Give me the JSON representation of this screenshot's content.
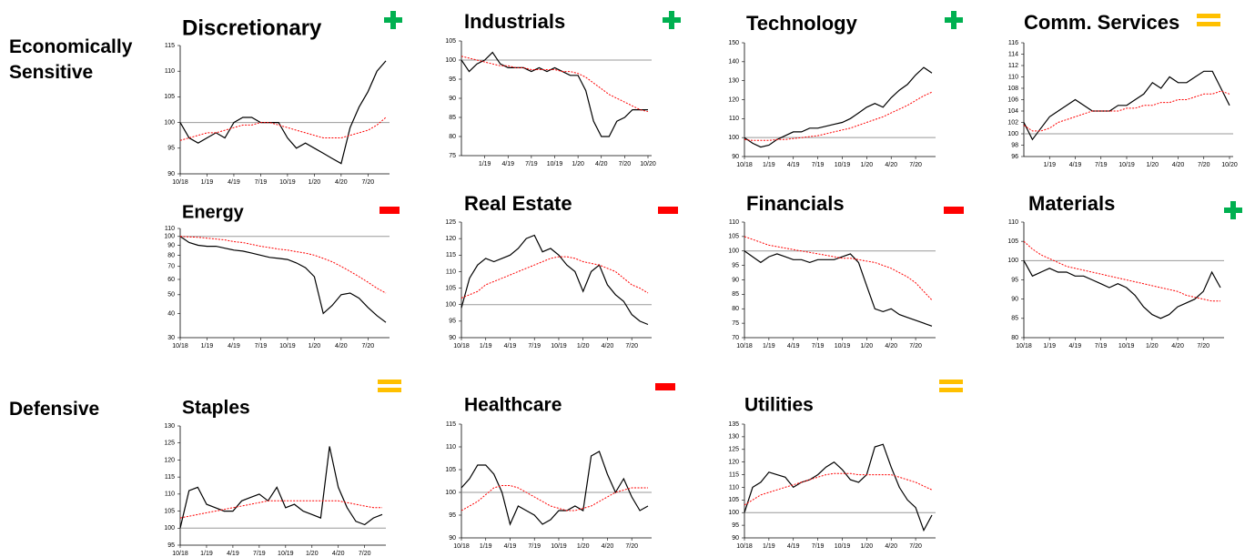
{
  "groups": [
    "Economically Sensitive",
    "Defensive"
  ],
  "chart_data": [
    {
      "type": "line",
      "title": "Discretionary",
      "signal": "+",
      "signal_color": "#00b050",
      "categories": [
        "10/18",
        null,
        null,
        "1/19",
        null,
        null,
        "4/19",
        null,
        null,
        "7/19",
        null,
        null,
        "10/19",
        null,
        null,
        "1/20",
        null,
        null,
        "4/20",
        null,
        null,
        "7/20",
        null,
        null
      ],
      "ylim": [
        90,
        115
      ],
      "yticks": [
        90,
        95,
        100,
        105,
        110,
        115
      ],
      "hline": 100,
      "series": [
        {
          "color": "#000000",
          "values": [
            100,
            97,
            96,
            97,
            98,
            97,
            100,
            101,
            101,
            100,
            100,
            100,
            97,
            95,
            96,
            95,
            94,
            93,
            92,
            99,
            103,
            106,
            110,
            112
          ]
        },
        {
          "color": "#ff0000",
          "dashed": true,
          "values": [
            96.5,
            97,
            97.5,
            98,
            98,
            98.5,
            99,
            99.5,
            99.5,
            100,
            100,
            99.5,
            99,
            98.5,
            98,
            97.5,
            97,
            97,
            97,
            97.5,
            98,
            98.5,
            99.5,
            101
          ]
        }
      ]
    },
    {
      "type": "line",
      "title": "Industrials",
      "signal": "+",
      "signal_color": "#00b050",
      "categories": [
        null,
        null,
        null,
        "1/19",
        null,
        null,
        "4/19",
        null,
        null,
        "7/19",
        null,
        null,
        "10/19",
        null,
        null,
        "1/20",
        null,
        null,
        "4/20",
        null,
        null,
        "7/20",
        null,
        null,
        "10/20"
      ],
      "ylim": [
        75,
        105
      ],
      "yticks": [
        75,
        80,
        85,
        90,
        95,
        100,
        105
      ],
      "hline": 100,
      "series": [
        {
          "color": "#000000",
          "values": [
            100,
            97,
            99,
            100,
            102,
            99,
            98,
            98,
            98,
            97,
            98,
            97,
            98,
            97,
            96,
            96,
            92,
            84,
            80,
            80,
            84,
            85,
            87,
            87,
            87
          ]
        },
        {
          "color": "#ff0000",
          "dashed": true,
          "values": [
            101,
            100.5,
            100,
            99.5,
            99,
            98.5,
            98.5,
            98,
            98,
            97.5,
            97.5,
            97.5,
            97.5,
            97,
            97,
            96.5,
            95.5,
            94,
            92.5,
            91,
            90,
            89,
            88,
            87,
            86.5
          ]
        }
      ]
    },
    {
      "type": "line",
      "title": "Technology",
      "signal": "+",
      "signal_color": "#00b050",
      "categories": [
        "10/18",
        null,
        null,
        "1/19",
        null,
        null,
        "4/19",
        null,
        null,
        "7/19",
        null,
        null,
        "10/19",
        null,
        null,
        "1/20",
        null,
        null,
        "4/20",
        null,
        null,
        "7/20",
        null,
        null
      ],
      "ylim": [
        90,
        150
      ],
      "yticks": [
        90,
        100,
        110,
        120,
        130,
        140,
        150
      ],
      "hline": 100,
      "series": [
        {
          "color": "#000000",
          "values": [
            100,
            97,
            95,
            96,
            99,
            101,
            103,
            103,
            105,
            105,
            106,
            107,
            108,
            110,
            113,
            116,
            118,
            116,
            121,
            125,
            128,
            133,
            137,
            134
          ]
        },
        {
          "color": "#ff0000",
          "dashed": true,
          "values": [
            99,
            98.5,
            98.5,
            98.5,
            99,
            99,
            99.5,
            100,
            100.5,
            101,
            102,
            103,
            104,
            105,
            106.5,
            108,
            109.5,
            111,
            113,
            115,
            117,
            119.5,
            122,
            124
          ]
        }
      ]
    },
    {
      "type": "line",
      "title": "Comm. Services",
      "signal": "=",
      "signal_color": "#ffc000",
      "categories": [
        null,
        null,
        null,
        "1/19",
        null,
        null,
        "4/19",
        null,
        null,
        "7/19",
        null,
        null,
        "10/19",
        null,
        null,
        "1/20",
        null,
        null,
        "4/20",
        null,
        null,
        "7/20",
        null,
        null,
        "10/20"
      ],
      "ylim": [
        96,
        116
      ],
      "yticks": [
        96,
        98,
        100,
        102,
        104,
        106,
        108,
        110,
        112,
        114,
        116
      ],
      "hline": 100,
      "series": [
        {
          "color": "#000000",
          "values": [
            102,
            99,
            101,
            103,
            104,
            105,
            106,
            105,
            104,
            104,
            104,
            105,
            105,
            106,
            107,
            109,
            108,
            110,
            109,
            109,
            110,
            111,
            111,
            108,
            105
          ]
        },
        {
          "color": "#ff0000",
          "dashed": true,
          "values": [
            101.5,
            100.5,
            100.5,
            101,
            102,
            102.5,
            103,
            103.5,
            104,
            104,
            104,
            104,
            104.5,
            104.5,
            105,
            105,
            105.5,
            105.5,
            106,
            106,
            106.5,
            107,
            107,
            107.5,
            107
          ]
        }
      ]
    },
    {
      "type": "line",
      "title": "Energy",
      "signal": "-",
      "signal_color": "#ff0000",
      "log": true,
      "categories": [
        "10/18",
        null,
        null,
        "1/19",
        null,
        null,
        "4/19",
        null,
        null,
        "7/19",
        null,
        null,
        "10/19",
        null,
        null,
        "1/20",
        null,
        null,
        "4/20",
        null,
        null,
        "7/20",
        null,
        null
      ],
      "ylim": [
        30,
        110
      ],
      "yticks": [
        30,
        40,
        50,
        60,
        70,
        80,
        90,
        100,
        110
      ],
      "hline": 100,
      "series": [
        {
          "color": "#000000",
          "values": [
            100,
            93,
            90,
            89,
            89,
            87,
            85,
            84,
            82,
            80,
            78,
            77,
            76,
            73,
            69,
            62,
            40,
            44,
            50,
            51,
            48,
            43,
            39,
            36
          ]
        },
        {
          "color": "#ff0000",
          "dashed": true,
          "values": [
            100,
            99.5,
            99,
            98,
            97,
            96,
            94,
            93,
            91,
            89,
            87.5,
            86,
            85,
            83.5,
            82,
            80,
            77,
            74,
            70,
            66,
            62,
            58,
            54,
            51
          ]
        }
      ]
    },
    {
      "type": "line",
      "title": "Real Estate",
      "signal": "-",
      "signal_color": "#ff0000",
      "categories": [
        "10/18",
        null,
        null,
        "1/19",
        null,
        null,
        "4/19",
        null,
        null,
        "7/19",
        null,
        null,
        "10/19",
        null,
        null,
        "1/20",
        null,
        null,
        "4/20",
        null,
        null,
        "7/20",
        null,
        null
      ],
      "ylim": [
        90,
        125
      ],
      "yticks": [
        90,
        95,
        100,
        105,
        110,
        115,
        120,
        125
      ],
      "hline": 100,
      "series": [
        {
          "color": "#000000",
          "values": [
            99,
            108,
            112,
            114,
            113,
            114,
            115,
            117,
            120,
            121,
            116,
            117,
            115,
            112,
            110,
            104,
            110,
            112,
            106,
            103,
            101,
            97,
            95,
            94
          ]
        },
        {
          "color": "#ff0000",
          "dashed": true,
          "values": [
            102,
            103,
            104,
            106,
            107,
            108,
            109,
            110,
            111,
            112,
            113,
            114,
            114.5,
            114.5,
            114,
            113,
            112.5,
            112,
            111,
            110,
            108,
            106,
            105,
            103.5
          ]
        }
      ]
    },
    {
      "type": "line",
      "title": "Financials",
      "signal": "-",
      "signal_color": "#ff0000",
      "categories": [
        "10/18",
        null,
        null,
        "1/19",
        null,
        null,
        "4/19",
        null,
        null,
        "7/19",
        null,
        null,
        "10/19",
        null,
        null,
        "1/20",
        null,
        null,
        "4/20",
        null,
        null,
        "7/20",
        null,
        null
      ],
      "ylim": [
        70,
        110
      ],
      "yticks": [
        70,
        75,
        80,
        85,
        90,
        95,
        100,
        105,
        110
      ],
      "hline": 100,
      "series": [
        {
          "color": "#000000",
          "values": [
            100,
            98,
            96,
            98,
            99,
            98,
            97,
            97,
            96,
            97,
            97,
            97,
            98,
            99,
            96,
            88,
            80,
            79,
            80,
            78,
            77,
            76,
            75,
            74
          ]
        },
        {
          "color": "#ff0000",
          "dashed": true,
          "values": [
            105,
            104,
            103,
            102,
            101.5,
            101,
            100.5,
            100,
            99.5,
            99,
            98.5,
            98,
            97.5,
            97.5,
            97,
            96.5,
            96,
            95,
            94,
            92.5,
            91,
            89,
            86,
            83
          ]
        }
      ]
    },
    {
      "type": "line",
      "title": "Materials",
      "signal": "+",
      "signal_color": "#00b050",
      "categories": [
        "10/18",
        null,
        null,
        "1/19",
        null,
        null,
        "4/19",
        null,
        null,
        "7/19",
        null,
        null,
        "10/19",
        null,
        null,
        "1/20",
        null,
        null,
        "4/20",
        null,
        null,
        "7/20",
        null,
        null
      ],
      "ylim": [
        80,
        110
      ],
      "yticks": [
        80,
        85,
        90,
        95,
        100,
        105,
        110
      ],
      "hline": 100,
      "series": [
        {
          "color": "#000000",
          "values": [
            100,
            96,
            97,
            98,
            97,
            97,
            96,
            96,
            95,
            94,
            93,
            94,
            93,
            91,
            88,
            86,
            85,
            86,
            88,
            89,
            90,
            92,
            97,
            93
          ]
        },
        {
          "color": "#ff0000",
          "dashed": true,
          "values": [
            105,
            103,
            101.5,
            100.5,
            99.5,
            98.5,
            98,
            97.5,
            97,
            96.5,
            96,
            95.5,
            95,
            94.5,
            94,
            93.5,
            93,
            92.5,
            92,
            91,
            90.5,
            90,
            89.5,
            89.5
          ]
        }
      ]
    },
    {
      "type": "line",
      "title": "Staples",
      "signal": "=",
      "signal_color": "#ffc000",
      "categories": [
        "10/18",
        null,
        null,
        "1/19",
        null,
        null,
        "4/19",
        null,
        null,
        "7/19",
        null,
        null,
        "10/19",
        null,
        null,
        "1/20",
        null,
        null,
        "4/20",
        null,
        null,
        "7/20",
        null,
        null
      ],
      "ylim": [
        95,
        130
      ],
      "yticks": [
        95,
        100,
        105,
        110,
        115,
        120,
        125,
        130
      ],
      "hline": 100,
      "series": [
        {
          "color": "#000000",
          "values": [
            100,
            111,
            112,
            107,
            106,
            105,
            105,
            108,
            109,
            110,
            108,
            112,
            106,
            107,
            105,
            104,
            103,
            124,
            112,
            106,
            102,
            101,
            103,
            104
          ]
        },
        {
          "color": "#ff0000",
          "dashed": true,
          "values": [
            103,
            103.5,
            104,
            104.5,
            105,
            105.5,
            106,
            106.5,
            107,
            107.5,
            108,
            108,
            108,
            108,
            108,
            108,
            108,
            108,
            108,
            107.5,
            107,
            106.5,
            106,
            106
          ]
        }
      ]
    },
    {
      "type": "line",
      "title": "Healthcare",
      "signal": "-",
      "signal_color": "#ff0000",
      "categories": [
        "10/18",
        null,
        null,
        "1/19",
        null,
        null,
        "4/19",
        null,
        null,
        "7/19",
        null,
        null,
        "10/19",
        null,
        null,
        "1/20",
        null,
        null,
        "4/20",
        null,
        null,
        "7/20",
        null,
        null
      ],
      "ylim": [
        90,
        115
      ],
      "yticks": [
        90,
        95,
        100,
        105,
        110,
        115
      ],
      "hline": 100,
      "series": [
        {
          "color": "#000000",
          "values": [
            101,
            103,
            106,
            106,
            104,
            100,
            93,
            97,
            96,
            95,
            93,
            94,
            96,
            96,
            97,
            96,
            108,
            109,
            104,
            100,
            103,
            99,
            96,
            97
          ]
        },
        {
          "color": "#ff0000",
          "dashed": true,
          "values": [
            96,
            97,
            98,
            99.5,
            101,
            101.5,
            101.5,
            101,
            100,
            99,
            98,
            97,
            96.5,
            96,
            96,
            96.5,
            97,
            98,
            99,
            100,
            100.5,
            101,
            101,
            101
          ]
        }
      ]
    },
    {
      "type": "line",
      "title": "Utilities",
      "signal": "=",
      "signal_color": "#ffc000",
      "categories": [
        "10/18",
        null,
        null,
        "1/19",
        null,
        null,
        "4/19",
        null,
        null,
        "7/19",
        null,
        null,
        "10/19",
        null,
        null,
        "1/20",
        null,
        null,
        "4/20",
        null,
        null,
        "7/20",
        null,
        null
      ],
      "ylim": [
        90,
        135
      ],
      "yticks": [
        90,
        95,
        100,
        105,
        110,
        115,
        120,
        125,
        130,
        135
      ],
      "hline": 100,
      "series": [
        {
          "color": "#000000",
          "values": [
            100,
            110,
            112,
            116,
            115,
            114,
            110,
            112,
            113,
            115,
            118,
            120,
            117,
            113,
            112,
            115,
            126,
            127,
            118,
            110,
            105,
            102,
            93,
            99
          ]
        },
        {
          "color": "#ff0000",
          "dashed": true,
          "values": [
            103,
            105,
            107,
            108,
            109,
            110,
            111,
            112,
            113,
            114,
            115,
            115.5,
            115.5,
            115.5,
            115,
            115,
            115,
            115,
            115,
            114,
            113,
            112,
            110.5,
            109
          ]
        }
      ]
    }
  ]
}
